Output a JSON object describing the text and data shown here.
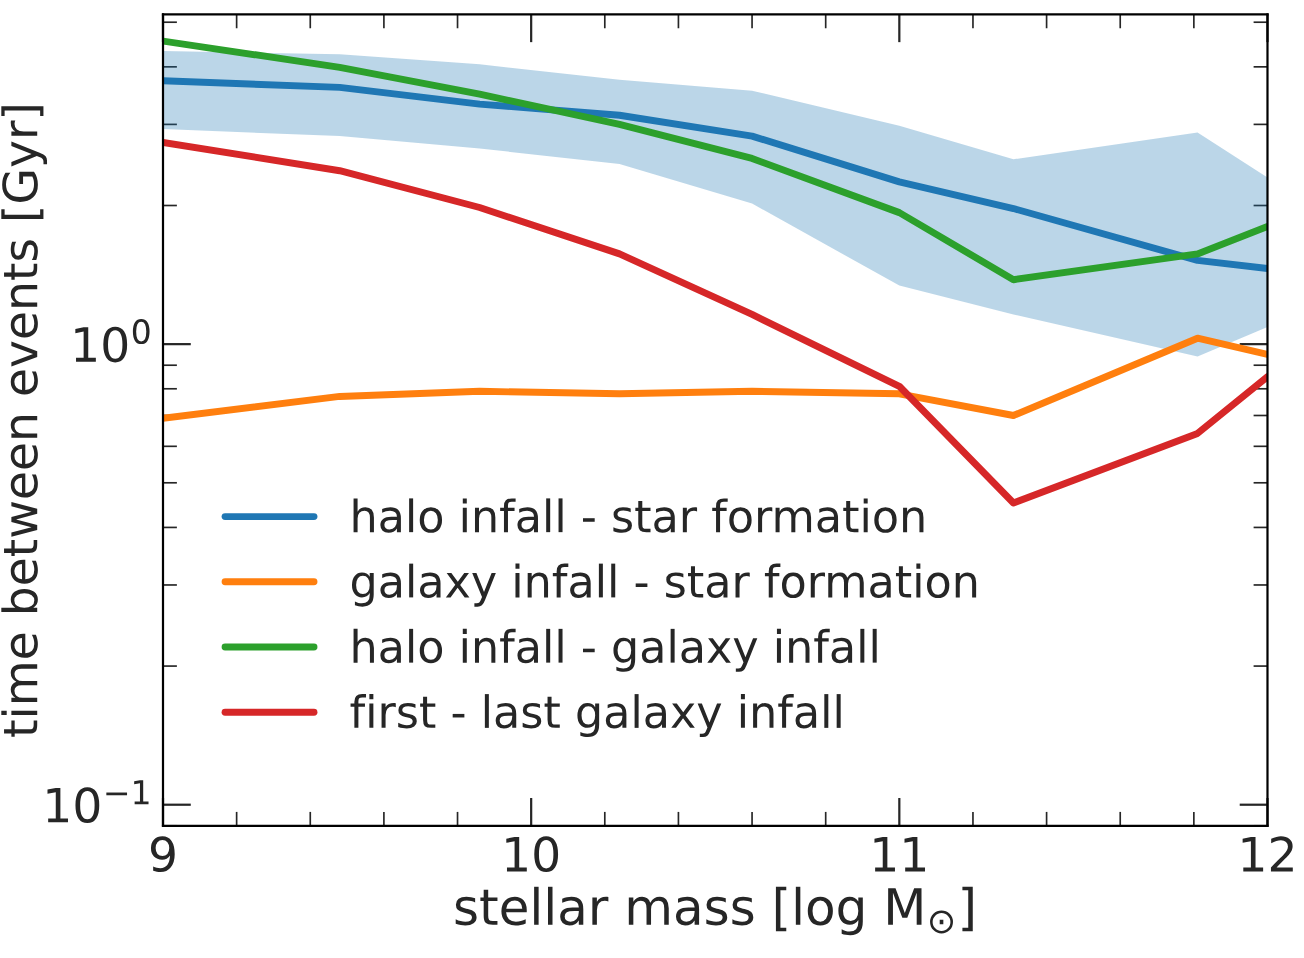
{
  "chart_data": {
    "type": "line",
    "xlabel": "stellar mass [log M$_{⊙}$]",
    "ylabel": "time between events [Gyr]",
    "x": [
      9,
      9.48,
      9.86,
      10.24,
      10.6,
      11.0,
      11.31,
      11.81,
      12
    ],
    "series": [
      {
        "name": "halo infall - star formation",
        "color": "#1f77b4",
        "values": [
          3.73,
          3.61,
          3.32,
          3.14,
          2.83,
          2.25,
          1.97,
          1.52,
          1.46
        ],
        "lower": [
          2.93,
          2.83,
          2.66,
          2.46,
          2.02,
          1.34,
          1.16,
          0.94,
          1.09
        ],
        "upper": [
          4.33,
          4.26,
          4.05,
          3.75,
          3.55,
          2.98,
          2.52,
          2.88,
          2.3
        ]
      },
      {
        "name": "galaxy infall - star formation",
        "color": "#ff7f0e",
        "values": [
          0.69,
          0.77,
          0.79,
          0.78,
          0.79,
          0.78,
          0.7,
          1.03,
          0.95
        ]
      },
      {
        "name": "halo infall - galaxy infall",
        "color": "#2ca02c",
        "values": [
          4.55,
          3.99,
          3.49,
          3.0,
          2.53,
          1.93,
          1.38,
          1.57,
          1.8
        ]
      },
      {
        "name": "first - last galaxy infall",
        "color": "#d62728",
        "values": [
          2.74,
          2.38,
          1.98,
          1.57,
          1.16,
          0.81,
          0.452,
          0.64,
          0.85
        ]
      }
    ],
    "log": "y",
    "xlim": [
      9,
      12
    ],
    "xticks": [
      9,
      10,
      11,
      12
    ],
    "ylim": [
      0.09,
      5.2
    ],
    "yticks": [
      {
        "value": 0.1,
        "label": "10$^{−1}$"
      },
      {
        "value": 1,
        "label": "10$^{0}$"
      }
    ],
    "legend": "bottom left",
    "grid": false,
    "line_style": "solid",
    "marker": "none"
  }
}
